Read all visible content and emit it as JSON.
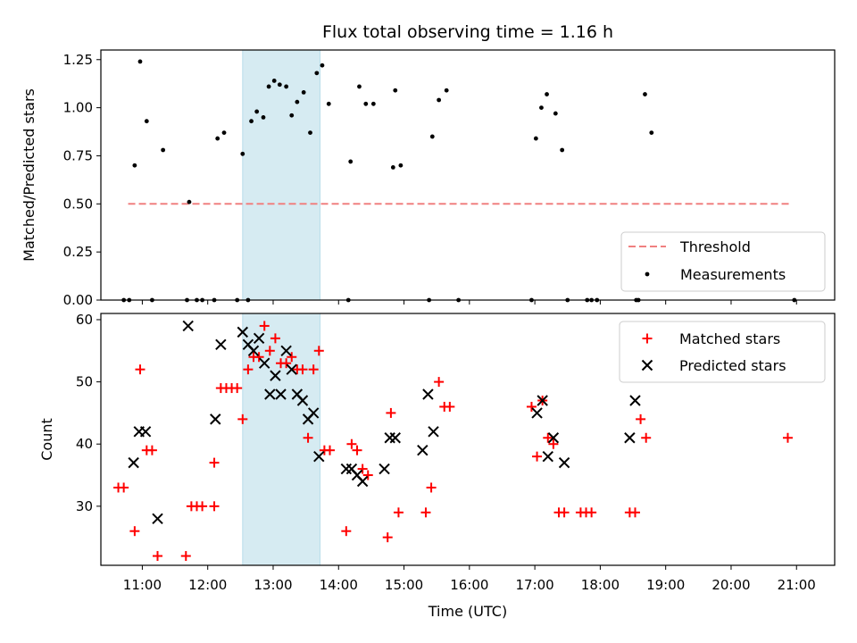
{
  "title": "Flux total observing time = 1.16 h",
  "chart_data": [
    {
      "type": "scatter",
      "ylabel": "Matched/Predicted stars",
      "ylim": [
        0,
        1.3
      ],
      "yticks": [
        "0.00",
        "0.25",
        "0.50",
        "0.75",
        "1.00",
        "1.25"
      ],
      "xlim": [
        "10:22",
        "21:35"
      ],
      "legend_placement": "lower-right",
      "highlight_span": [
        "12:32",
        "13:43"
      ],
      "threshold": {
        "name": "Threshold",
        "value": 0.5,
        "x_range": [
          "10:47",
          "20:55"
        ],
        "color": "#f08080"
      },
      "measurements": {
        "name": "Measurements",
        "color": "#000000",
        "points": [
          [
            "10:43",
            0
          ],
          [
            "10:48",
            0
          ],
          [
            "10:53",
            0.7
          ],
          [
            "10:58",
            1.24
          ],
          [
            "11:04",
            0.93
          ],
          [
            "11:09",
            0
          ],
          [
            "11:19",
            0.78
          ],
          [
            "11:41",
            0
          ],
          [
            "11:43",
            0.51
          ],
          [
            "11:50",
            0
          ],
          [
            "11:55",
            0
          ],
          [
            "12:06",
            0
          ],
          [
            "12:09",
            0.84
          ],
          [
            "12:15",
            0.87
          ],
          [
            "12:27",
            0
          ],
          [
            "12:32",
            0.76
          ],
          [
            "12:37",
            0
          ],
          [
            "12:40",
            0.93
          ],
          [
            "12:45",
            0.98
          ],
          [
            "12:51",
            0.95
          ],
          [
            "12:56",
            1.11
          ],
          [
            "13:01",
            1.14
          ],
          [
            "13:06",
            1.12
          ],
          [
            "13:12",
            1.11
          ],
          [
            "13:17",
            0.96
          ],
          [
            "13:22",
            1.03
          ],
          [
            "13:28",
            1.08
          ],
          [
            "13:34",
            0.87
          ],
          [
            "13:40",
            1.18
          ],
          [
            "13:45",
            1.22
          ],
          [
            "13:51",
            1.02
          ],
          [
            "14:09",
            0
          ],
          [
            "14:11",
            0.72
          ],
          [
            "14:19",
            1.11
          ],
          [
            "14:25",
            1.02
          ],
          [
            "14:32",
            1.02
          ],
          [
            "14:50",
            0.69
          ],
          [
            "14:52",
            1.09
          ],
          [
            "14:57",
            0.7
          ],
          [
            "15:23",
            0
          ],
          [
            "15:26",
            0.85
          ],
          [
            "15:32",
            1.04
          ],
          [
            "15:39",
            1.09
          ],
          [
            "15:50",
            0
          ],
          [
            "16:57",
            0
          ],
          [
            "17:01",
            0.84
          ],
          [
            "17:06",
            1.0
          ],
          [
            "17:11",
            1.07
          ],
          [
            "17:19",
            0.97
          ],
          [
            "17:25",
            0.78
          ],
          [
            "17:30",
            0
          ],
          [
            "17:48",
            0
          ],
          [
            "17:52",
            0
          ],
          [
            "17:57",
            0
          ],
          [
            "18:33",
            0
          ],
          [
            "18:35",
            0
          ],
          [
            "18:41",
            1.07
          ],
          [
            "18:47",
            0.87
          ],
          [
            "20:58",
            0
          ]
        ]
      }
    },
    {
      "type": "scatter",
      "xlabel": "Time (UTC)",
      "ylabel": "Count",
      "ylim": [
        20.5,
        61
      ],
      "yticks": [
        "30",
        "40",
        "50",
        "60"
      ],
      "xticks": [
        "11:00",
        "12:00",
        "13:00",
        "14:00",
        "15:00",
        "16:00",
        "17:00",
        "18:00",
        "19:00",
        "20:00",
        "21:00"
      ],
      "xlim": [
        "10:22",
        "21:35"
      ],
      "legend_placement": "upper-right",
      "highlight_span": [
        "12:32",
        "13:43"
      ],
      "series": [
        {
          "name": "Matched stars",
          "marker": "plus",
          "color": "#ff0000",
          "points": [
            [
              "10:38",
              33
            ],
            [
              "10:43",
              33
            ],
            [
              "10:53",
              26
            ],
            [
              "10:58",
              52
            ],
            [
              "11:04",
              39
            ],
            [
              "11:09",
              39
            ],
            [
              "11:14",
              22
            ],
            [
              "11:40",
              22
            ],
            [
              "11:45",
              30
            ],
            [
              "11:50",
              30
            ],
            [
              "11:55",
              30
            ],
            [
              "12:06",
              37
            ],
            [
              "12:06",
              30
            ],
            [
              "12:12",
              49
            ],
            [
              "12:17",
              49
            ],
            [
              "12:22",
              49
            ],
            [
              "12:27",
              49
            ],
            [
              "12:32",
              44
            ],
            [
              "12:37",
              52
            ],
            [
              "12:42",
              54
            ],
            [
              "12:47",
              54
            ],
            [
              "12:52",
              59
            ],
            [
              "12:57",
              55
            ],
            [
              "13:02",
              57
            ],
            [
              "13:07",
              53
            ],
            [
              "13:12",
              53
            ],
            [
              "13:17",
              54
            ],
            [
              "13:22",
              52
            ],
            [
              "13:27",
              52
            ],
            [
              "13:32",
              41
            ],
            [
              "13:37",
              52
            ],
            [
              "13:42",
              55
            ],
            [
              "13:47",
              39
            ],
            [
              "13:52",
              39
            ],
            [
              "14:07",
              26
            ],
            [
              "14:12",
              40
            ],
            [
              "14:17",
              39
            ],
            [
              "14:22",
              36
            ],
            [
              "14:27",
              35
            ],
            [
              "14:45",
              25
            ],
            [
              "14:48",
              45
            ],
            [
              "14:55",
              29
            ],
            [
              "15:20",
              29
            ],
            [
              "15:25",
              33
            ],
            [
              "15:32",
              50
            ],
            [
              "15:37",
              46
            ],
            [
              "15:42",
              46
            ],
            [
              "16:57",
              46
            ],
            [
              "17:02",
              38
            ],
            [
              "17:07",
              47
            ],
            [
              "17:12",
              41
            ],
            [
              "17:17",
              40
            ],
            [
              "17:22",
              29
            ],
            [
              "17:27",
              29
            ],
            [
              "17:42",
              29
            ],
            [
              "17:47",
              29
            ],
            [
              "17:52",
              29
            ],
            [
              "18:27",
              29
            ],
            [
              "18:32",
              29
            ],
            [
              "18:37",
              44
            ],
            [
              "18:42",
              41
            ],
            [
              "20:52",
              41
            ]
          ]
        },
        {
          "name": "Predicted stars",
          "marker": "x",
          "color": "#000000",
          "points": [
            [
              "10:52",
              37
            ],
            [
              "10:57",
              42
            ],
            [
              "11:03",
              42
            ],
            [
              "11:14",
              28
            ],
            [
              "11:42",
              59
            ],
            [
              "12:07",
              44
            ],
            [
              "12:12",
              56
            ],
            [
              "12:32",
              58
            ],
            [
              "12:37",
              56
            ],
            [
              "12:42",
              55
            ],
            [
              "12:47",
              57
            ],
            [
              "12:52",
              53
            ],
            [
              "12:57",
              48
            ],
            [
              "13:02",
              51
            ],
            [
              "13:07",
              48
            ],
            [
              "13:12",
              55
            ],
            [
              "13:17",
              52
            ],
            [
              "13:22",
              48
            ],
            [
              "13:27",
              47
            ],
            [
              "13:32",
              44
            ],
            [
              "13:37",
              45
            ],
            [
              "13:42",
              38
            ],
            [
              "14:07",
              36
            ],
            [
              "14:12",
              36
            ],
            [
              "14:17",
              35
            ],
            [
              "14:22",
              34
            ],
            [
              "14:42",
              36
            ],
            [
              "14:47",
              41
            ],
            [
              "14:52",
              41
            ],
            [
              "15:17",
              39
            ],
            [
              "15:22",
              48
            ],
            [
              "15:27",
              42
            ],
            [
              "17:02",
              45
            ],
            [
              "17:07",
              47
            ],
            [
              "17:12",
              38
            ],
            [
              "17:17",
              41
            ],
            [
              "17:27",
              37
            ],
            [
              "18:27",
              41
            ],
            [
              "18:32",
              47
            ]
          ]
        }
      ]
    }
  ]
}
